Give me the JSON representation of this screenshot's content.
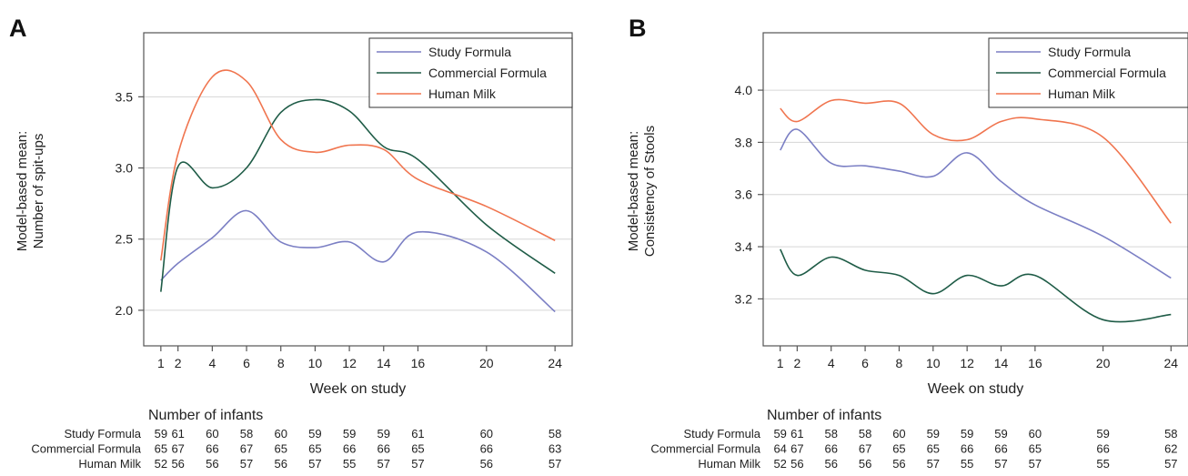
{
  "panels": [
    {
      "letter": "A",
      "ylabel_line1": "Model-based mean:",
      "ylabel_line2": "Number of spit-ups",
      "xlabel": "Week on study",
      "infants_title": "Number of infants"
    },
    {
      "letter": "B",
      "ylabel_line1": "Model-based mean:",
      "ylabel_line2": "Consistency of Stools",
      "xlabel": "Week on study",
      "infants_title": "Number of infants"
    }
  ],
  "chart_data": [
    {
      "type": "line",
      "title": "",
      "xlabel": "Week on study",
      "ylabel": "Model-based mean: Number of spit-ups",
      "xlim": [
        0,
        25
      ],
      "ylim": [
        1.75,
        3.95
      ],
      "xticks": [
        1,
        2,
        4,
        6,
        8,
        10,
        12,
        14,
        16,
        20,
        24
      ],
      "yticks": [
        2.0,
        2.5,
        3.0,
        3.5
      ],
      "ytick_labels": [
        "2.0",
        "2.5",
        "3.0",
        "3.5"
      ],
      "grid": "horizontal",
      "legend_position": "top-right",
      "series": [
        {
          "name": "Study Formula",
          "color": "#7b7fc4",
          "x": [
            1,
            2,
            4,
            6,
            8,
            10,
            12,
            14,
            16,
            20,
            24
          ],
          "values": [
            2.21,
            2.33,
            2.51,
            2.7,
            2.48,
            2.44,
            2.48,
            2.34,
            2.55,
            2.41,
            1.99
          ]
        },
        {
          "name": "Commercial Formula",
          "color": "#1f5c47",
          "x": [
            1,
            2,
            4,
            6,
            8,
            10,
            12,
            14,
            16,
            20,
            24
          ],
          "values": [
            2.13,
            3.01,
            2.86,
            3.0,
            3.39,
            3.48,
            3.4,
            3.15,
            3.06,
            2.6,
            2.26
          ]
        },
        {
          "name": "Human Milk",
          "color": "#f0754f",
          "x": [
            1,
            2,
            4,
            6,
            8,
            10,
            12,
            14,
            16,
            20,
            24
          ],
          "values": [
            2.35,
            3.1,
            3.64,
            3.61,
            3.2,
            3.11,
            3.16,
            3.13,
            2.92,
            2.73,
            2.49
          ]
        }
      ],
      "infants": {
        "weeks": [
          1,
          2,
          4,
          6,
          8,
          10,
          12,
          14,
          16,
          20,
          24
        ],
        "rows": [
          {
            "label": "Study Formula",
            "counts": [
              "59",
              "61",
              "60",
              "58",
              "60",
              "59",
              "59",
              "59",
              "61",
              "60",
              "58"
            ]
          },
          {
            "label": "Commercial Formula",
            "counts": [
              "65",
              "67",
              "66",
              "67",
              "65",
              "65",
              "66",
              "66",
              "65",
              "66",
              "63"
            ]
          },
          {
            "label": "Human Milk",
            "counts": [
              "52",
              "56",
              "56",
              "57",
              "56",
              "57",
              "55",
              "57",
              "57",
              "56",
              "57"
            ]
          }
        ]
      }
    },
    {
      "type": "line",
      "title": "",
      "xlabel": "Week on study",
      "ylabel": "Model-based mean: Consistency of Stools",
      "xlim": [
        0,
        25
      ],
      "ylim": [
        3.02,
        4.22
      ],
      "xticks": [
        1,
        2,
        4,
        6,
        8,
        10,
        12,
        14,
        16,
        20,
        24
      ],
      "yticks": [
        3.2,
        3.4,
        3.6,
        3.8,
        4.0
      ],
      "ytick_labels": [
        "3.2",
        "3.4",
        "3.6",
        "3.8",
        "4.0"
      ],
      "grid": "horizontal",
      "legend_position": "top-right",
      "series": [
        {
          "name": "Study Formula",
          "color": "#7b7fc4",
          "x": [
            1,
            2,
            4,
            6,
            8,
            10,
            12,
            14,
            16,
            20,
            24
          ],
          "values": [
            3.77,
            3.85,
            3.72,
            3.71,
            3.69,
            3.67,
            3.76,
            3.65,
            3.56,
            3.44,
            3.28
          ]
        },
        {
          "name": "Commercial Formula",
          "color": "#1f5c47",
          "x": [
            1,
            2,
            4,
            6,
            8,
            10,
            12,
            14,
            16,
            20,
            24
          ],
          "values": [
            3.39,
            3.29,
            3.36,
            3.31,
            3.29,
            3.22,
            3.29,
            3.25,
            3.29,
            3.12,
            3.14
          ]
        },
        {
          "name": "Human Milk",
          "color": "#f0754f",
          "x": [
            1,
            2,
            4,
            6,
            8,
            10,
            12,
            14,
            16,
            20,
            24
          ],
          "values": [
            3.93,
            3.88,
            3.96,
            3.95,
            3.95,
            3.83,
            3.81,
            3.88,
            3.89,
            3.82,
            3.49
          ]
        }
      ],
      "infants": {
        "weeks": [
          1,
          2,
          4,
          6,
          8,
          10,
          12,
          14,
          16,
          20,
          24
        ],
        "rows": [
          {
            "label": "Study Formula",
            "counts": [
              "59",
              "61",
              "58",
              "58",
              "60",
              "59",
              "59",
              "59",
              "60",
              "59",
              "58"
            ]
          },
          {
            "label": "Commercial Formula",
            "counts": [
              "64",
              "67",
              "66",
              "67",
              "65",
              "65",
              "66",
              "66",
              "65",
              "66",
              "62"
            ]
          },
          {
            "label": "Human Milk",
            "counts": [
              "52",
              "56",
              "56",
              "56",
              "56",
              "57",
              "55",
              "57",
              "57",
              "55",
              "57"
            ]
          }
        ]
      }
    }
  ]
}
